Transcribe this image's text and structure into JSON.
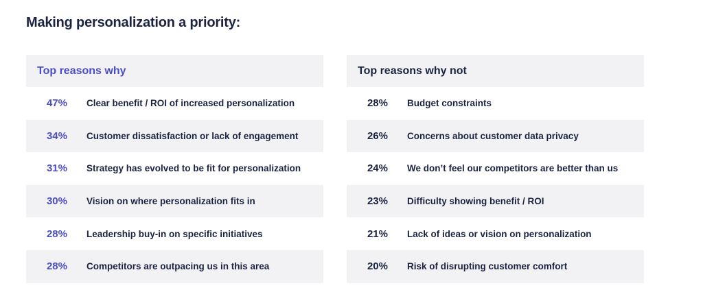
{
  "title": "Making personalization a priority:",
  "colors": {
    "accent": "#4a4fc4",
    "text": "#1a2340",
    "stripe": "#f2f2f4"
  },
  "chart_data": [
    {
      "type": "table",
      "title": "Top reasons why",
      "rows": [
        {
          "value": "47%",
          "label": "Clear benefit / ROI of increased personalization"
        },
        {
          "value": "34%",
          "label": "Customer dissatisfaction or lack of engagement"
        },
        {
          "value": "31%",
          "label": "Strategy has evolved to be fit for personalization"
        },
        {
          "value": "30%",
          "label": "Vision on where personalization fits in"
        },
        {
          "value": "28%",
          "label": "Leadership buy-in on specific initiatives"
        },
        {
          "value": "28%",
          "label": "Competitors are outpacing us in this area"
        }
      ]
    },
    {
      "type": "table",
      "title": "Top reasons why not",
      "rows": [
        {
          "value": "28%",
          "label": "Budget constraints"
        },
        {
          "value": "26%",
          "label": "Concerns about customer data privacy"
        },
        {
          "value": "24%",
          "label": "We don’t feel our competitors are better than us"
        },
        {
          "value": "23%",
          "label": "Difficulty showing benefit / ROI"
        },
        {
          "value": "21%",
          "label": "Lack of ideas or vision on personalization"
        },
        {
          "value": "20%",
          "label": "Risk of disrupting customer comfort"
        }
      ]
    }
  ]
}
